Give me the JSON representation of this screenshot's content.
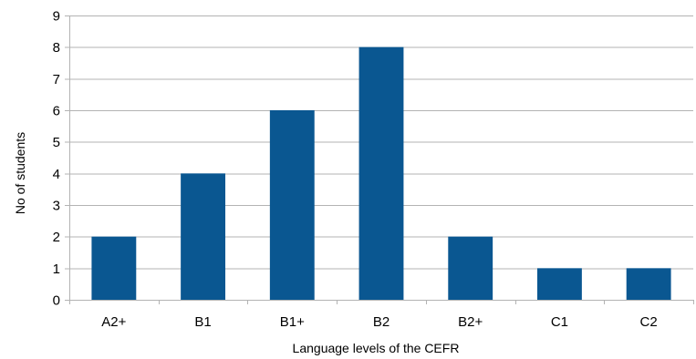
{
  "chart_data": {
    "type": "bar",
    "categories": [
      "A2+",
      "B1",
      "B1+",
      "B2",
      "B2+",
      "C1",
      "C2"
    ],
    "values": [
      2,
      4,
      6,
      8,
      2,
      1,
      1
    ],
    "xlabel": "Language levels of the CEFR",
    "ylabel": "No of students",
    "ylim": [
      0,
      9
    ],
    "yticks": [
      0,
      1,
      2,
      3,
      4,
      5,
      6,
      7,
      8,
      9
    ],
    "grid": true,
    "legend": "none",
    "bar_color": "#0a5791"
  }
}
